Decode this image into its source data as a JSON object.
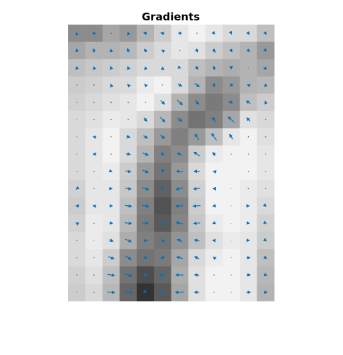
{
  "chart_data": {
    "type": "heatmap",
    "title": "Gradients",
    "xlabel": "",
    "ylabel": "",
    "grid": false,
    "axes_visible": false,
    "colormap": "gray",
    "quiver_color": "#0072bd",
    "rows": 16,
    "cols": 12,
    "intensity": [
      [
        0.55,
        0.55,
        0.65,
        0.6,
        0.7,
        0.8,
        0.9,
        0.95,
        0.9,
        0.85,
        0.85,
        0.75
      ],
      [
        0.65,
        0.7,
        0.7,
        0.72,
        0.8,
        0.85,
        0.9,
        0.88,
        0.8,
        0.75,
        0.7,
        0.6
      ],
      [
        0.75,
        0.78,
        0.8,
        0.82,
        0.85,
        0.85,
        0.85,
        0.75,
        0.7,
        0.68,
        0.7,
        0.65
      ],
      [
        0.8,
        0.82,
        0.85,
        0.86,
        0.92,
        0.95,
        0.85,
        0.7,
        0.55,
        0.6,
        0.7,
        0.72
      ],
      [
        0.82,
        0.85,
        0.88,
        0.9,
        0.95,
        0.88,
        0.7,
        0.55,
        0.48,
        0.55,
        0.75,
        0.8
      ],
      [
        0.85,
        0.88,
        0.92,
        0.9,
        0.85,
        0.72,
        0.55,
        0.45,
        0.5,
        0.65,
        0.88,
        0.85
      ],
      [
        0.85,
        0.9,
        0.95,
        0.85,
        0.75,
        0.6,
        0.5,
        0.6,
        0.75,
        0.9,
        0.95,
        0.88
      ],
      [
        0.85,
        0.9,
        0.95,
        0.85,
        0.7,
        0.5,
        0.55,
        0.8,
        0.92,
        0.95,
        0.95,
        0.9
      ],
      [
        0.85,
        0.9,
        0.92,
        0.8,
        0.6,
        0.45,
        0.6,
        0.85,
        0.95,
        0.95,
        0.95,
        0.9
      ],
      [
        0.82,
        0.9,
        0.9,
        0.78,
        0.55,
        0.38,
        0.55,
        0.82,
        0.95,
        0.95,
        0.92,
        0.88
      ],
      [
        0.8,
        0.9,
        0.9,
        0.75,
        0.5,
        0.32,
        0.5,
        0.8,
        0.95,
        0.95,
        0.92,
        0.85
      ],
      [
        0.82,
        0.92,
        0.9,
        0.72,
        0.48,
        0.35,
        0.52,
        0.78,
        0.92,
        0.95,
        0.92,
        0.82
      ],
      [
        0.85,
        0.92,
        0.88,
        0.68,
        0.5,
        0.45,
        0.58,
        0.75,
        0.88,
        0.92,
        0.9,
        0.8
      ],
      [
        0.85,
        0.9,
        0.8,
        0.55,
        0.45,
        0.48,
        0.65,
        0.85,
        0.92,
        0.95,
        0.9,
        0.75
      ],
      [
        0.82,
        0.88,
        0.75,
        0.45,
        0.3,
        0.4,
        0.68,
        0.88,
        0.95,
        0.95,
        0.9,
        0.72
      ],
      [
        0.8,
        0.85,
        0.72,
        0.4,
        0.2,
        0.35,
        0.65,
        0.88,
        0.95,
        0.95,
        0.9,
        0.7
      ]
    ]
  }
}
